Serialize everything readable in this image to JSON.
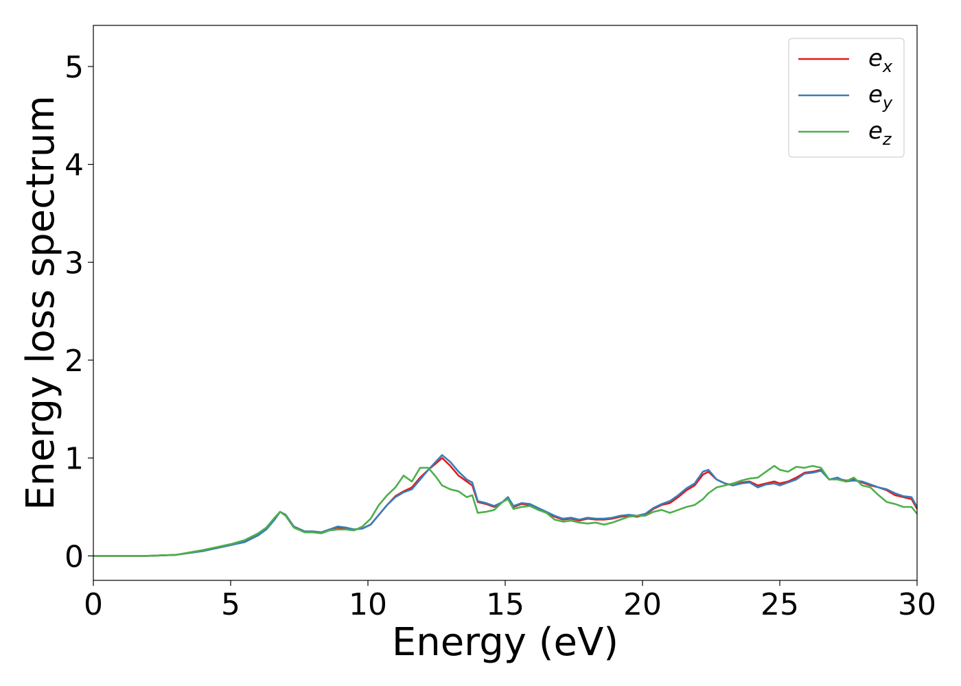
{
  "chart_data": {
    "type": "line",
    "xlabel": "Energy (eV)",
    "ylabel": "Energy loss spectrum",
    "xlim": [
      0,
      30
    ],
    "ylim": [
      -0.25,
      5.42
    ],
    "xticks": [
      0,
      5,
      10,
      15,
      20,
      25,
      30
    ],
    "yticks": [
      0,
      1,
      2,
      3,
      4,
      5
    ],
    "grid": false,
    "legend_position": "top-right",
    "x": [
      0,
      1,
      2,
      2.5,
      3,
      3.5,
      4,
      4.5,
      5,
      5.5,
      6,
      6.3,
      6.6,
      6.8,
      7.0,
      7.3,
      7.7,
      8.0,
      8.3,
      8.6,
      8.9,
      9.2,
      9.5,
      9.8,
      10.1,
      10.4,
      10.7,
      11.0,
      11.3,
      11.6,
      11.9,
      12.2,
      12.5,
      12.7,
      13.0,
      13.3,
      13.6,
      13.8,
      14.0,
      14.3,
      14.6,
      14.9,
      15.1,
      15.3,
      15.6,
      15.9,
      16.2,
      16.5,
      16.8,
      17.1,
      17.4,
      17.7,
      18.0,
      18.3,
      18.6,
      18.9,
      19.2,
      19.5,
      19.8,
      20.1,
      20.4,
      20.7,
      21.0,
      21.3,
      21.6,
      21.9,
      22.2,
      22.4,
      22.7,
      23.0,
      23.3,
      23.6,
      23.9,
      24.2,
      24.5,
      24.8,
      25.0,
      25.3,
      25.6,
      25.9,
      26.2,
      26.5,
      26.8,
      27.1,
      27.4,
      27.7,
      28.0,
      28.3,
      28.6,
      28.9,
      29.2,
      29.5,
      29.8,
      30.0
    ],
    "series": [
      {
        "name": "e_x",
        "label_main": "e",
        "label_sub": "x",
        "color": "#e41a1c",
        "values": [
          0,
          0,
          0,
          0.005,
          0.01,
          0.03,
          0.05,
          0.08,
          0.11,
          0.15,
          0.22,
          0.28,
          0.38,
          0.45,
          0.42,
          0.3,
          0.25,
          0.25,
          0.24,
          0.27,
          0.29,
          0.28,
          0.27,
          0.28,
          0.32,
          0.42,
          0.52,
          0.61,
          0.66,
          0.7,
          0.8,
          0.88,
          0.95,
          1.0,
          0.92,
          0.82,
          0.76,
          0.72,
          0.55,
          0.53,
          0.5,
          0.55,
          0.6,
          0.5,
          0.53,
          0.52,
          0.48,
          0.44,
          0.4,
          0.37,
          0.38,
          0.36,
          0.38,
          0.37,
          0.37,
          0.38,
          0.4,
          0.41,
          0.4,
          0.42,
          0.48,
          0.52,
          0.54,
          0.6,
          0.67,
          0.72,
          0.83,
          0.86,
          0.78,
          0.74,
          0.72,
          0.75,
          0.76,
          0.72,
          0.74,
          0.76,
          0.74,
          0.76,
          0.8,
          0.85,
          0.86,
          0.88,
          0.78,
          0.79,
          0.77,
          0.78,
          0.75,
          0.72,
          0.7,
          0.67,
          0.62,
          0.6,
          0.58,
          0.48
        ]
      },
      {
        "name": "e_y",
        "label_main": "e",
        "label_sub": "y",
        "color": "#377eb8",
        "values": [
          0,
          0,
          0,
          0.005,
          0.01,
          0.03,
          0.05,
          0.08,
          0.11,
          0.14,
          0.21,
          0.27,
          0.37,
          0.45,
          0.42,
          0.3,
          0.25,
          0.25,
          0.24,
          0.27,
          0.3,
          0.29,
          0.27,
          0.28,
          0.32,
          0.42,
          0.52,
          0.6,
          0.65,
          0.68,
          0.78,
          0.88,
          0.97,
          1.03,
          0.96,
          0.86,
          0.78,
          0.75,
          0.56,
          0.54,
          0.51,
          0.55,
          0.6,
          0.51,
          0.54,
          0.53,
          0.49,
          0.45,
          0.41,
          0.38,
          0.39,
          0.37,
          0.39,
          0.38,
          0.38,
          0.39,
          0.41,
          0.42,
          0.41,
          0.43,
          0.49,
          0.53,
          0.56,
          0.62,
          0.69,
          0.74,
          0.86,
          0.88,
          0.78,
          0.74,
          0.72,
          0.74,
          0.75,
          0.7,
          0.73,
          0.74,
          0.72,
          0.75,
          0.78,
          0.84,
          0.85,
          0.87,
          0.78,
          0.8,
          0.76,
          0.77,
          0.76,
          0.73,
          0.7,
          0.68,
          0.64,
          0.61,
          0.6,
          0.5
        ]
      },
      {
        "name": "e_z",
        "label_main": "e",
        "label_sub": "z",
        "color": "#4daf4a",
        "values": [
          0,
          0,
          0,
          0.005,
          0.01,
          0.035,
          0.06,
          0.09,
          0.12,
          0.16,
          0.23,
          0.29,
          0.39,
          0.45,
          0.41,
          0.29,
          0.24,
          0.24,
          0.23,
          0.26,
          0.27,
          0.27,
          0.26,
          0.3,
          0.38,
          0.52,
          0.62,
          0.7,
          0.82,
          0.76,
          0.9,
          0.9,
          0.8,
          0.72,
          0.68,
          0.66,
          0.6,
          0.62,
          0.44,
          0.45,
          0.47,
          0.55,
          0.58,
          0.48,
          0.5,
          0.51,
          0.47,
          0.44,
          0.37,
          0.35,
          0.36,
          0.34,
          0.33,
          0.34,
          0.32,
          0.34,
          0.37,
          0.4,
          0.41,
          0.41,
          0.45,
          0.47,
          0.44,
          0.47,
          0.5,
          0.52,
          0.58,
          0.64,
          0.7,
          0.72,
          0.74,
          0.77,
          0.79,
          0.8,
          0.86,
          0.92,
          0.88,
          0.86,
          0.91,
          0.9,
          0.92,
          0.9,
          0.78,
          0.78,
          0.76,
          0.8,
          0.72,
          0.7,
          0.62,
          0.55,
          0.53,
          0.5,
          0.5,
          0.43
        ]
      }
    ]
  }
}
